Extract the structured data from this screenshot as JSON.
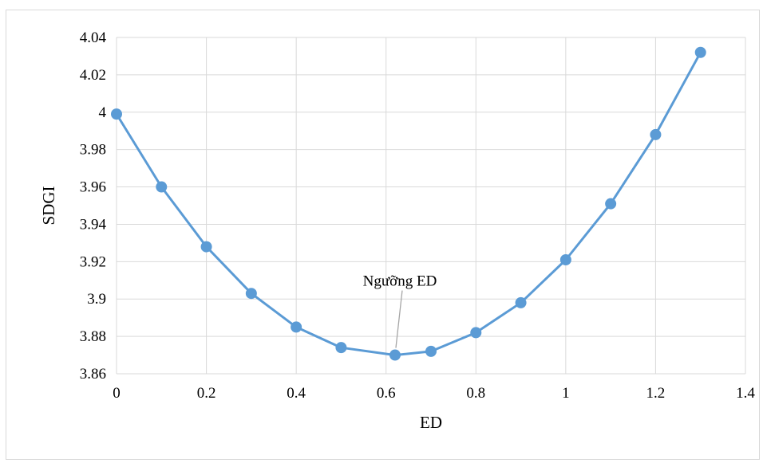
{
  "chart_data": {
    "type": "line",
    "title": "",
    "xlabel": "ED",
    "ylabel": "SDGI",
    "xlim": [
      0,
      1.4
    ],
    "ylim": [
      3.86,
      4.04
    ],
    "x_ticks": [
      "0",
      "0.2",
      "0.4",
      "0.6",
      "0.8",
      "1",
      "1.2",
      "1.4"
    ],
    "y_ticks": [
      "3.86",
      "3.88",
      "3.9",
      "3.92",
      "3.94",
      "3.96",
      "3.98",
      "4",
      "4.02",
      "4.04"
    ],
    "grid": true,
    "legend": "none",
    "series": [
      {
        "color": "#5b9bd5",
        "x": [
          0,
          0.1,
          0.2,
          0.3,
          0.4,
          0.5,
          0.62,
          0.7,
          0.8,
          0.9,
          1.0,
          1.1,
          1.2,
          1.3
        ],
        "y": [
          3.999,
          3.96,
          3.928,
          3.903,
          3.885,
          3.874,
          3.87,
          3.872,
          3.882,
          3.898,
          3.921,
          3.951,
          3.988,
          4.032
        ]
      }
    ],
    "annotations": [
      {
        "text": "Ngưỡng ED",
        "x": 0.62,
        "y": 3.87
      }
    ]
  }
}
